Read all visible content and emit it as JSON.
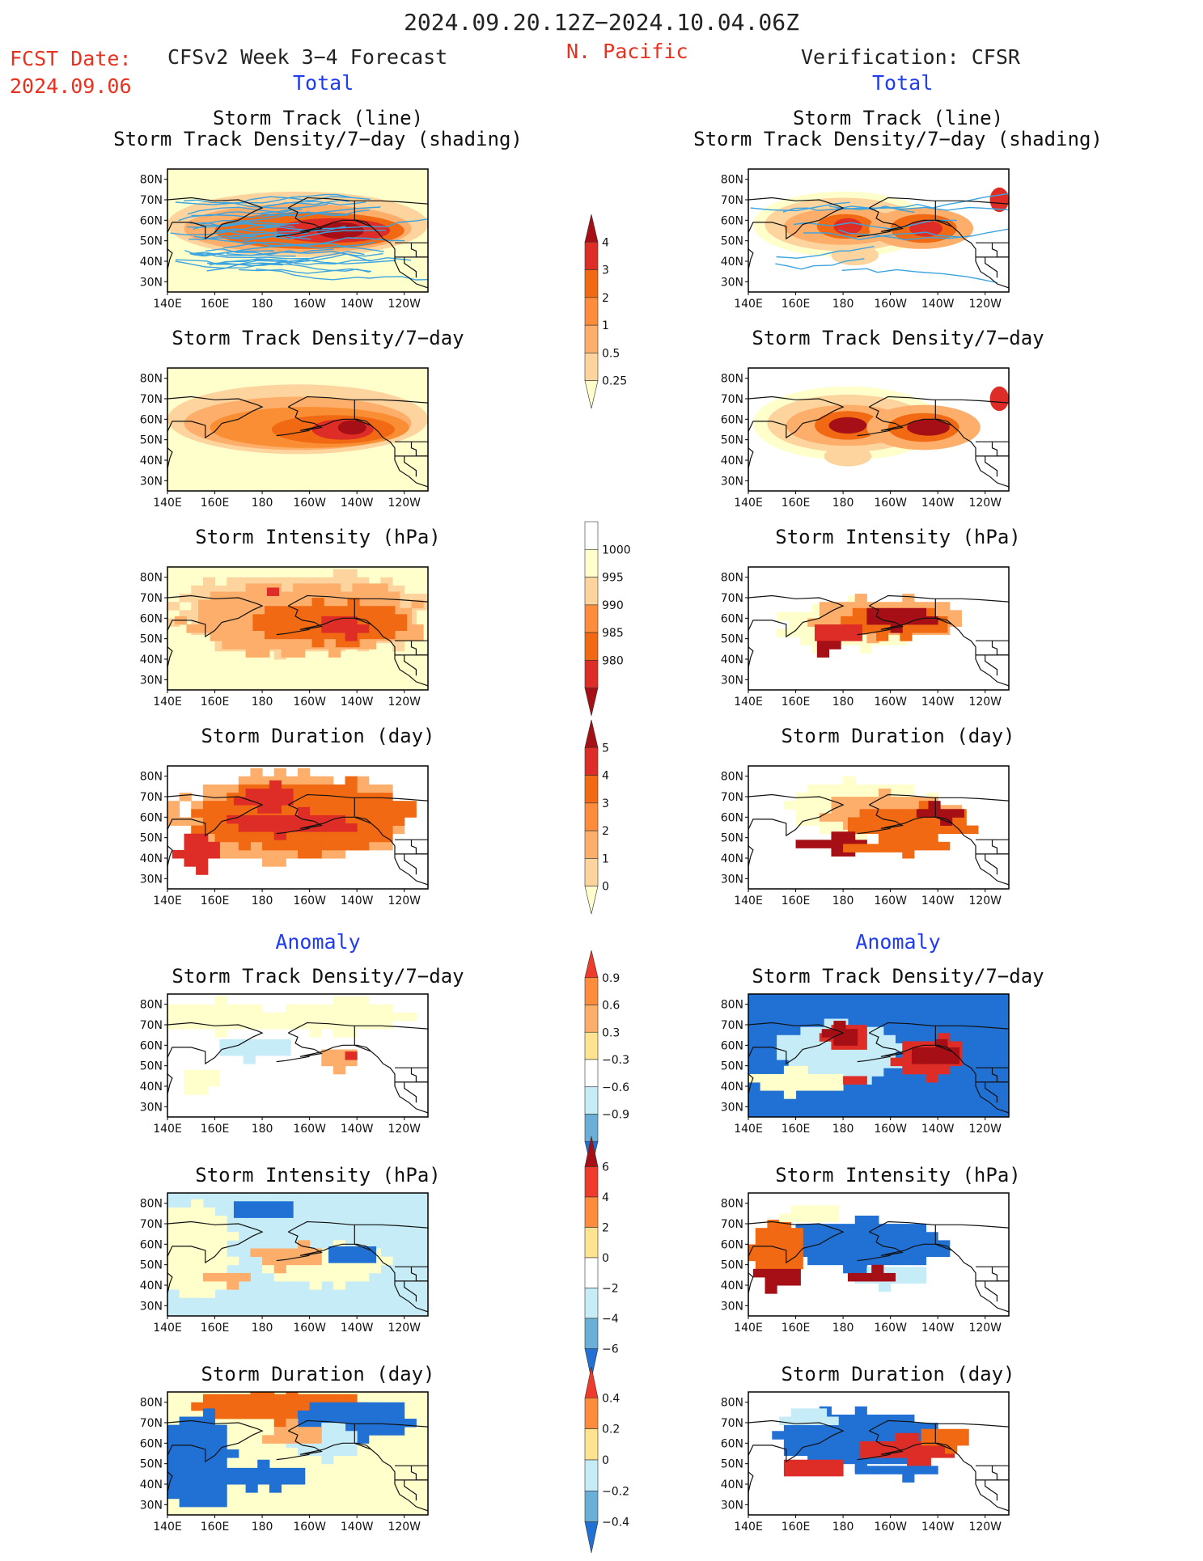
{
  "header": {
    "date_range": "2024.09.20.12Z−2024.10.04.06Z",
    "region": "N. Pacific",
    "fcst_label": "FCST Date:",
    "fcst_date": "2024.09.06",
    "left_title": "CFSv2 Week 3−4 Forecast",
    "right_title": "Verification: CFSR",
    "total_label": "Total",
    "anomaly_label": "Anomaly"
  },
  "panel_titles": {
    "track_combo_1": "Storm Track (line)",
    "track_combo_2": "Storm Track Density/7−day (shading)",
    "density": "Storm Track Density/7−day",
    "intensity": "Storm Intensity (hPa)",
    "duration": "Storm Duration (day)"
  },
  "axes": {
    "lat_ticks": [
      "80N",
      "70N",
      "60N",
      "50N",
      "40N",
      "30N"
    ],
    "lon_ticks": [
      "140E",
      "160E",
      "180",
      "160W",
      "140W",
      "120W"
    ]
  },
  "colorbars": [
    {
      "id": "density_total",
      "labels": [
        "4",
        "3",
        "2",
        "1",
        "0.5",
        "0.25"
      ],
      "colors": [
        "#a50f15",
        "#de2d26",
        "#f16913",
        "#fd8d3c",
        "#fdae6b",
        "#fdd49e",
        "#ffffcc"
      ]
    },
    {
      "id": "intensity_total",
      "labels": [
        "1000",
        "995",
        "990",
        "985",
        "980"
      ],
      "colors": [
        "#ffffff",
        "#ffffcc",
        "#fdd49e",
        "#fd8d3c",
        "#f16913",
        "#de2d26",
        "#a50f15"
      ]
    },
    {
      "id": "duration_total",
      "labels": [
        "5",
        "4",
        "3",
        "2",
        "1",
        "0"
      ],
      "colors": [
        "#a50f15",
        "#de2d26",
        "#f16913",
        "#fd8d3c",
        "#fdae6b",
        "#fdd49e",
        "#ffffcc"
      ]
    },
    {
      "id": "density_anom",
      "labels": [
        "0.9",
        "0.6",
        "0.3",
        "−0.3",
        "−0.6",
        "−0.9"
      ],
      "colors": [
        "#ef3b2c",
        "#fd8d3c",
        "#fdae6b",
        "#fee391",
        "#ffffff",
        "#c6ecf7",
        "#6baed6",
        "#2171d5"
      ]
    },
    {
      "id": "intensity_anom",
      "labels": [
        "6",
        "4",
        "2",
        "0",
        "−2",
        "−4",
        "−6"
      ],
      "colors": [
        "#a50f15",
        "#ef3b2c",
        "#fd8d3c",
        "#fee391",
        "#ffffff",
        "#c6ecf7",
        "#6baed6",
        "#2171d5"
      ]
    },
    {
      "id": "duration_anom",
      "labels": [
        "0.4",
        "0.2",
        "0",
        "−0.2",
        "−0.4"
      ],
      "colors": [
        "#ef3b2c",
        "#fd8d3c",
        "#fee391",
        "#c6ecf7",
        "#6baed6",
        "#2171d5"
      ]
    }
  ],
  "map_colors": {
    "pale": "#ffffcc",
    "light_orange": "#fdd49e",
    "orange": "#fdae6b",
    "orange_mid": "#f98e34",
    "red_orange": "#f16913",
    "red": "#de2d26",
    "dark_red": "#a50f15",
    "light_blue": "#c6ecf7",
    "blue": "#2171d5",
    "track_line": "#3ba3e0",
    "coast": "#111111"
  },
  "chart_data": [
    {
      "type": "heatmap",
      "panel": "forecast_total_track_density_with_tracks",
      "title": "Storm Track (line) / Storm Track Density/7−day (shading)",
      "pattern": "density maximum near 50–60N, 170W–140W",
      "colorbar": [
        "0.25",
        "0.5",
        "1",
        "2",
        "3",
        "4"
      ]
    },
    {
      "type": "heatmap",
      "panel": "forecast_total_track_density",
      "title": "Storm Track Density/7−day",
      "pattern": "maximum near 55N, 145W",
      "colorbar": [
        "0.25",
        "0.5",
        "1",
        "2",
        "3",
        "4"
      ]
    },
    {
      "type": "heatmap",
      "panel": "forecast_total_intensity",
      "title": "Storm Intensity (hPa)",
      "colorbar": [
        "980",
        "985",
        "990",
        "995",
        "1000"
      ]
    },
    {
      "type": "heatmap",
      "panel": "forecast_total_duration",
      "title": "Storm Duration (day)",
      "colorbar": [
        "0",
        "1",
        "2",
        "3",
        "4",
        "5"
      ]
    },
    {
      "type": "heatmap",
      "panel": "forecast_anomaly_density",
      "title": "Storm Track Density/7−day",
      "colorbar": [
        "−0.9",
        "−0.6",
        "−0.3",
        "0.3",
        "0.6",
        "0.9"
      ]
    },
    {
      "type": "heatmap",
      "panel": "forecast_anomaly_intensity",
      "title": "Storm Intensity (hPa)",
      "colorbar": [
        "−6",
        "−4",
        "−2",
        "0",
        "2",
        "4",
        "6"
      ]
    },
    {
      "type": "heatmap",
      "panel": "forecast_anomaly_duration",
      "title": "Storm Duration (day)",
      "colorbar": [
        "−0.4",
        "−0.2",
        "0",
        "0.2",
        "0.4"
      ]
    },
    {
      "type": "heatmap",
      "panel": "cfsr_total_track_density_with_tracks",
      "title": "Storm Track (line) / Storm Track Density/7−day (shading)",
      "pattern": "maxima near 57N 180 and 55N 145W"
    },
    {
      "type": "heatmap",
      "panel": "cfsr_total_track_density",
      "title": "Storm Track Density/7−day"
    },
    {
      "type": "heatmap",
      "panel": "cfsr_total_intensity",
      "title": "Storm Intensity (hPa)"
    },
    {
      "type": "heatmap",
      "panel": "cfsr_total_duration",
      "title": "Storm Duration (day)"
    },
    {
      "type": "heatmap",
      "panel": "cfsr_anomaly_density",
      "title": "Storm Track Density/7−day"
    },
    {
      "type": "heatmap",
      "panel": "cfsr_anomaly_intensity",
      "title": "Storm Intensity (hPa)"
    },
    {
      "type": "heatmap",
      "panel": "cfsr_anomaly_duration",
      "title": "Storm Duration (day)"
    }
  ]
}
